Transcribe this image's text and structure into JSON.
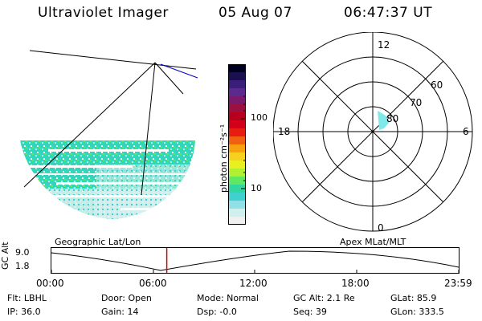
{
  "header": {
    "instrument": "Ultraviolet Imager",
    "date": "05 Aug 07",
    "time": "06:47:37 UT"
  },
  "colorbar": {
    "unit_label": "photon cm⁻²s⁻¹",
    "ticks": [
      "100",
      "10"
    ],
    "colors": [
      "#000020",
      "#1a1050",
      "#3a1f7a",
      "#5a2a8f",
      "#7a1a6a",
      "#9a1040",
      "#b8001c",
      "#d4001a",
      "#e81c10",
      "#f06010",
      "#f8a010",
      "#f8d020",
      "#e8f020",
      "#b0f030",
      "#60e860",
      "#30d8a0",
      "#40d0d0",
      "#90e0e8",
      "#d0f0f0",
      "#f0f0f0"
    ]
  },
  "polar": {
    "labels": {
      "top": "12",
      "left": "18",
      "right": "6",
      "bottom": "0",
      "ring_60": "60",
      "ring_70": "70",
      "ring_80": "80"
    }
  },
  "timeline": {
    "axis_label": "GC Alt",
    "y_ticks": [
      "9.0",
      "1.8"
    ],
    "left_caption": "Geographic Lat/Lon",
    "right_caption": "Apex MLat/MLT",
    "x_ticks": [
      "00:00",
      "06:00",
      "12:00",
      "18:00",
      "23:59"
    ],
    "marker_time": "06:47:37"
  },
  "info": {
    "flt": "Flt: LBHL",
    "ip": "IP: 36.0",
    "door": "Door: Open",
    "gain": "Gain: 14",
    "mode": "Mode: Normal",
    "dsp": "Dsp:   -0.0",
    "gc_alt": "GC Alt: 2.1 Re",
    "seq": "Seq: 39",
    "glat": "GLat:  85.9",
    "glon": "GLon: 333.5"
  }
}
